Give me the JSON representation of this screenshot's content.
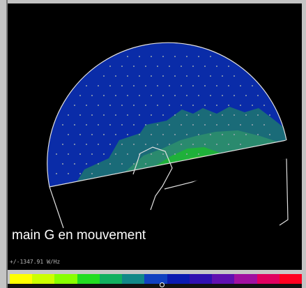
{
  "caption": "main G en mouvement",
  "scale_readout": "+/-1347.91 W/Hz",
  "icons": {
    "scale_marker": "circle-marker-icon"
  },
  "colors": {
    "scalp_background": "#0a2ca8",
    "electrode_dot": "#9aa6b0",
    "outline": "#e0e0e0",
    "heatmap": [
      "#1a6b78",
      "#2a8a6e",
      "#1fb13a",
      "#7ad72a",
      "#d9f21e"
    ]
  },
  "color_scale": [
    "#ffff00",
    "#ccff00",
    "#88ff00",
    "#22dd22",
    "#11b060",
    "#118888",
    "#1040c0",
    "#0a1ab0",
    "#3010b0",
    "#6010b0",
    "#a010a0",
    "#e00060",
    "#ff0020"
  ]
}
